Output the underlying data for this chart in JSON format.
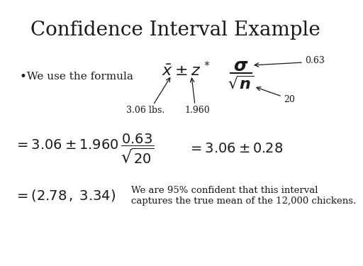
{
  "title": "Confidence Interval Example",
  "title_fontsize": 20,
  "bg_color": "#ffffff",
  "text_color": "#1a1a1a",
  "bullet_text": "We use the formula",
  "annotation_xbar": "3.06 lbs.",
  "annotation_z": "1.960",
  "annotation_sigma": "0.63",
  "annotation_n": "20",
  "line3b_1": "We are 95% confident that this interval",
  "line3b_2": "captures the true mean of the 12,000 chickens.",
  "fontsize_body": 11,
  "fontsize_formula": 13,
  "fontsize_formula2": 11,
  "fontsize_annot": 9
}
